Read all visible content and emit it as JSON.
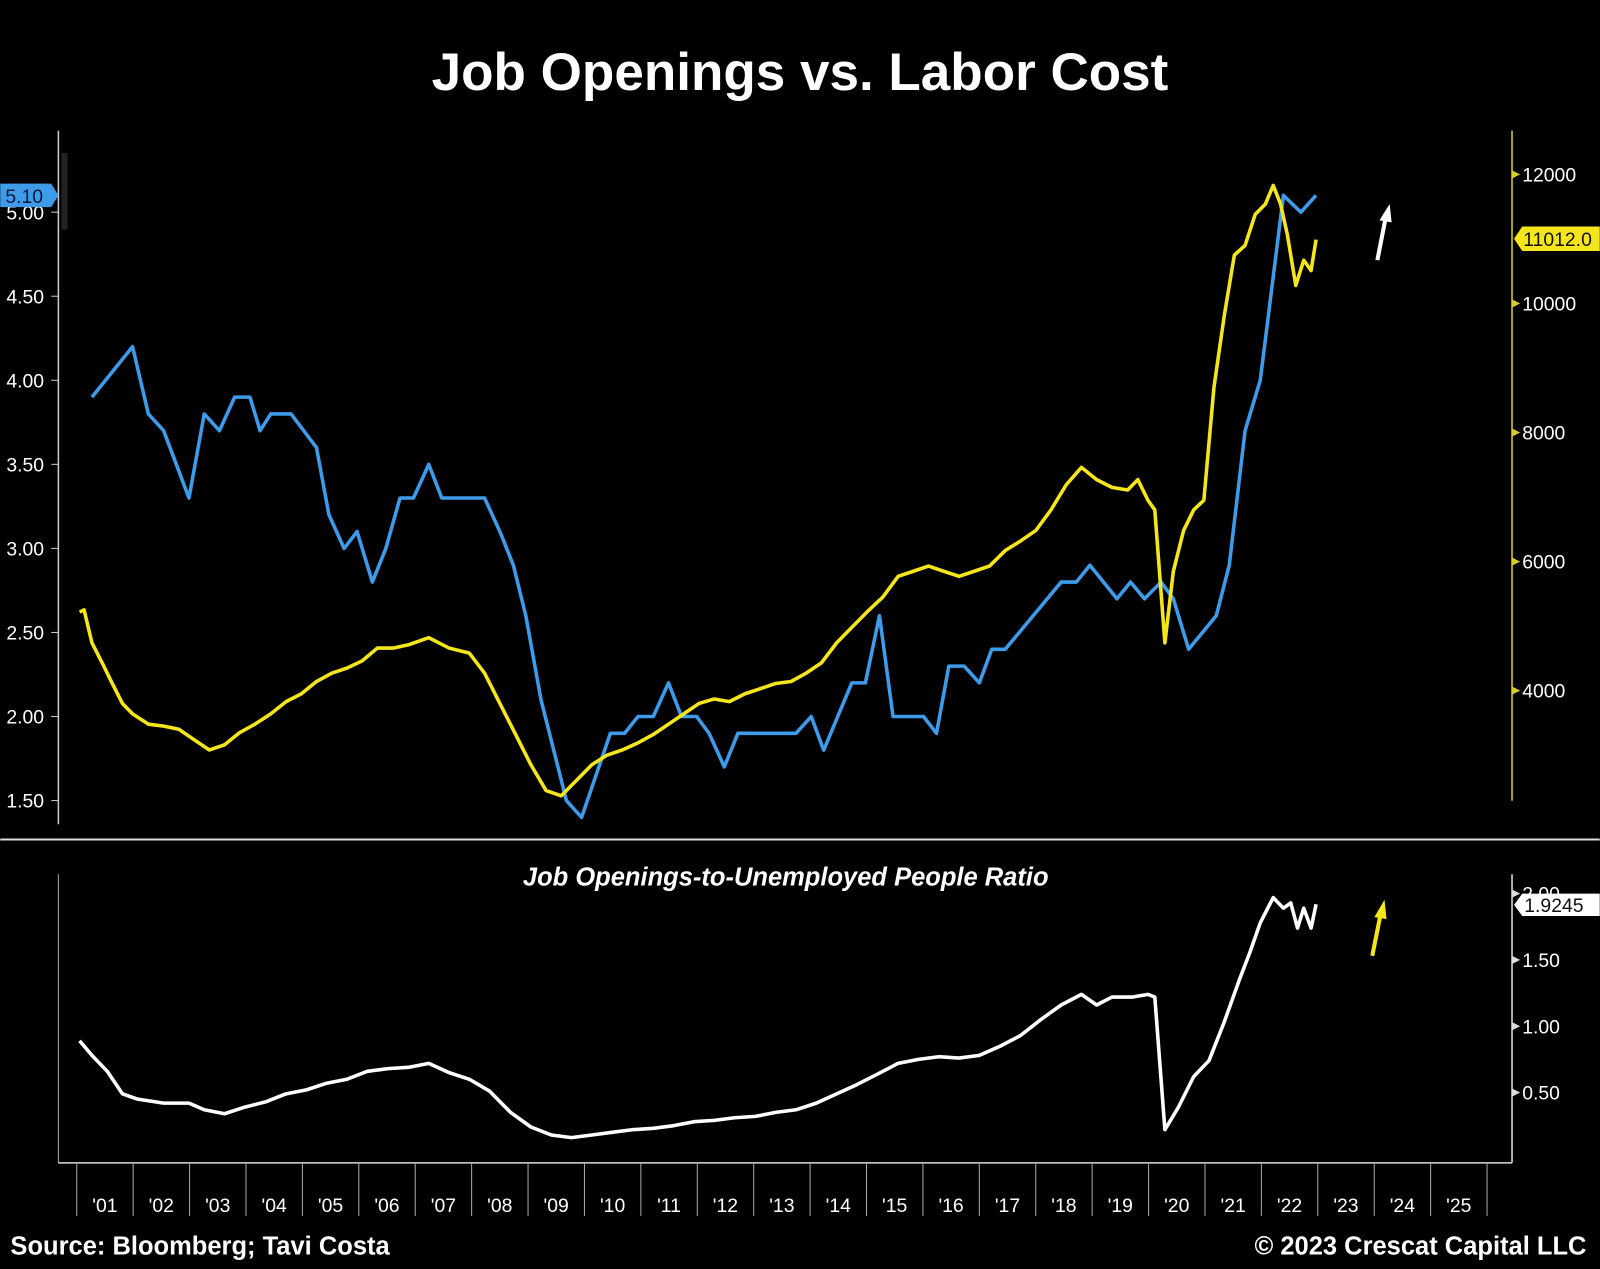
{
  "chart_data": [
    {
      "type": "line",
      "title": "Job Openings vs. Labor Cost",
      "x_tick_labels": [
        "'01",
        "'02",
        "'03",
        "'04",
        "'05",
        "'06",
        "'07",
        "'08",
        "'09",
        "'10",
        "'11",
        "'12",
        "'13",
        "'14",
        "'15",
        "'16",
        "'17",
        "'18",
        "'19",
        "'20",
        "'21",
        "'22",
        "'23",
        "'24",
        "'25"
      ],
      "xlim": [
        2001,
        2026
      ],
      "left_axis": {
        "ylim": [
          1.4,
          5.3
        ],
        "ticks": [
          "1.50",
          "2.00",
          "2.50",
          "3.00",
          "3.50",
          "4.00",
          "4.50",
          "5.00"
        ]
      },
      "right_axis": {
        "ylim": [
          2200,
          12800
        ],
        "ticks": [
          "4000",
          "6000",
          "8000",
          "10000",
          "12000"
        ]
      },
      "series": [
        {
          "name": "Job Openings",
          "axis": "left",
          "color": "#3d9be9",
          "last_value_label": "5.10",
          "x": [
            2001.27,
            2001.99,
            2002.27,
            2002.54,
            2002.99,
            2003.26,
            2003.53,
            2003.8,
            2004.07,
            2004.25,
            2004.44,
            2004.8,
            2005.25,
            2005.47,
            2005.74,
            2005.97,
            2006.24,
            2006.48,
            2006.73,
            2006.97,
            2007.24,
            2007.47,
            2008.23,
            2008.5,
            2008.74,
            2008.96,
            2009.23,
            2009.68,
            2009.95,
            2010.46,
            2010.71,
            2010.95,
            2011.22,
            2011.49,
            2011.72,
            2011.99,
            2012.21,
            2012.48,
            2012.72,
            2013.75,
            2014.02,
            2014.24,
            2014.74,
            2014.98,
            2015.23,
            2015.47,
            2016.01,
            2016.24,
            2016.46,
            2016.73,
            2017.0,
            2017.22,
            2017.46,
            2018.45,
            2018.72,
            2018.96,
            2019.44,
            2019.68,
            2019.93,
            2020.22,
            2020.44,
            2020.71,
            2021.2,
            2021.43,
            2021.71,
            2021.98,
            2022.39,
            2022.7,
            2022.97
          ],
          "y": [
            3.9,
            4.2,
            3.8,
            3.7,
            3.3,
            3.8,
            3.7,
            3.9,
            3.9,
            3.7,
            3.8,
            3.8,
            3.6,
            3.2,
            3.0,
            3.1,
            2.8,
            3.0,
            3.3,
            3.3,
            3.5,
            3.3,
            3.3,
            3.1,
            2.9,
            2.6,
            2.1,
            1.5,
            1.4,
            1.9,
            1.9,
            2.0,
            2.0,
            2.2,
            2.0,
            2.0,
            1.9,
            1.7,
            1.9,
            1.9,
            2.0,
            1.8,
            2.2,
            2.2,
            2.6,
            2.0,
            2.0,
            1.9,
            2.3,
            2.3,
            2.2,
            2.4,
            2.4,
            2.8,
            2.8,
            2.9,
            2.7,
            2.8,
            2.7,
            2.8,
            2.7,
            2.4,
            2.6,
            2.9,
            3.7,
            4.0,
            5.1,
            5.0,
            5.1
          ]
        },
        {
          "name": "Labor Cost",
          "axis": "right",
          "color": "#f5e61c",
          "last_value_label": "11012.0",
          "x": [
            2001.05,
            2001.13,
            2001.27,
            2001.45,
            2001.63,
            2001.81,
            2001.99,
            2002.27,
            2002.54,
            2002.81,
            2003.08,
            2003.35,
            2003.62,
            2003.89,
            2004.16,
            2004.44,
            2004.71,
            2004.98,
            2005.25,
            2005.52,
            2005.79,
            2006.06,
            2006.33,
            2006.61,
            2006.88,
            2007.24,
            2007.6,
            2007.96,
            2008.23,
            2008.5,
            2008.78,
            2009.05,
            2009.32,
            2009.59,
            2009.86,
            2010.13,
            2010.4,
            2010.67,
            2010.95,
            2011.22,
            2011.49,
            2011.76,
            2012.03,
            2012.3,
            2012.57,
            2012.84,
            2013.12,
            2013.39,
            2013.66,
            2013.93,
            2014.2,
            2014.47,
            2014.74,
            2015.01,
            2015.29,
            2015.56,
            2015.83,
            2016.1,
            2016.37,
            2016.64,
            2016.91,
            2017.18,
            2017.46,
            2017.73,
            2018.0,
            2018.27,
            2018.54,
            2018.81,
            2019.08,
            2019.35,
            2019.63,
            2019.81,
            2019.99,
            2020.11,
            2020.29,
            2020.44,
            2020.62,
            2020.8,
            2020.98,
            2021.16,
            2021.34,
            2021.52,
            2021.71,
            2021.89,
            2022.07,
            2022.21,
            2022.34,
            2022.46,
            2022.61,
            2022.75,
            2022.88,
            2022.97
          ],
          "y": [
            5217,
            5250,
            4740,
            4430,
            4110,
            3800,
            3640,
            3480,
            3450,
            3400,
            3240,
            3080,
            3160,
            3350,
            3480,
            3640,
            3830,
            3950,
            4140,
            4270,
            4350,
            4460,
            4660,
            4660,
            4710,
            4820,
            4660,
            4580,
            4270,
            3800,
            3320,
            2850,
            2450,
            2370,
            2610,
            2850,
            3000,
            3080,
            3190,
            3320,
            3480,
            3640,
            3800,
            3870,
            3830,
            3950,
            4030,
            4110,
            4140,
            4270,
            4430,
            4740,
            4980,
            5220,
            5450,
            5770,
            5850,
            5930,
            5850,
            5770,
            5850,
            5930,
            6170,
            6320,
            6480,
            6800,
            7190,
            7460,
            7270,
            7150,
            7110,
            7270,
            6950,
            6800,
            4740,
            5850,
            6480,
            6800,
            6950,
            8700,
            9800,
            10750,
            10900,
            11380,
            11540,
            11830,
            11540,
            11070,
            10280,
            10670,
            10510,
            10990
          ]
        }
      ]
    },
    {
      "type": "line",
      "title": "Job Openings-to-Unemployed People Ratio",
      "right_axis": {
        "ylim": [
          0,
          2.1
        ],
        "ticks": [
          "0.50",
          "1.00",
          "1.50",
          "2.00"
        ]
      },
      "series": [
        {
          "name": "Job Openings-to-Unemployed People Ratio",
          "color": "#ffffff",
          "last_value_label": "1.9245",
          "x": [
            2001.05,
            2001.27,
            2001.54,
            2001.81,
            2002.08,
            2002.54,
            2002.99,
            2003.26,
            2003.62,
            2003.98,
            2004.35,
            2004.71,
            2005.07,
            2005.43,
            2005.79,
            2006.15,
            2006.52,
            2006.88,
            2007.24,
            2007.6,
            2007.96,
            2008.32,
            2008.69,
            2009.05,
            2009.41,
            2009.77,
            2010.13,
            2010.49,
            2010.86,
            2011.22,
            2011.58,
            2011.94,
            2012.3,
            2012.66,
            2013.03,
            2013.39,
            2013.75,
            2014.11,
            2014.47,
            2014.83,
            2015.2,
            2015.56,
            2015.92,
            2016.28,
            2016.64,
            2017.0,
            2017.37,
            2017.73,
            2018.09,
            2018.45,
            2018.81,
            2019.08,
            2019.35,
            2019.72,
            2019.99,
            2020.11,
            2020.29,
            2020.53,
            2020.8,
            2021.07,
            2021.34,
            2021.61,
            2021.79,
            2021.98,
            2022.21,
            2022.39,
            2022.52,
            2022.64,
            2022.75,
            2022.88,
            2022.97
          ],
          "y": [
            0.89,
            0.78,
            0.66,
            0.49,
            0.45,
            0.42,
            0.42,
            0.37,
            0.34,
            0.39,
            0.43,
            0.49,
            0.52,
            0.57,
            0.6,
            0.66,
            0.68,
            0.69,
            0.72,
            0.65,
            0.6,
            0.51,
            0.35,
            0.24,
            0.18,
            0.16,
            0.18,
            0.2,
            0.22,
            0.23,
            0.25,
            0.28,
            0.29,
            0.31,
            0.32,
            0.35,
            0.37,
            0.42,
            0.49,
            0.56,
            0.64,
            0.72,
            0.75,
            0.77,
            0.76,
            0.78,
            0.85,
            0.93,
            1.05,
            1.16,
            1.24,
            1.16,
            1.22,
            1.22,
            1.24,
            1.22,
            0.22,
            0.39,
            0.62,
            0.74,
            1.03,
            1.35,
            1.55,
            1.78,
            1.97,
            1.89,
            1.93,
            1.74,
            1.89,
            1.74,
            1.92
          ]
        }
      ]
    }
  ],
  "footer": {
    "source": "Source: Bloomberg; Tavi Costa",
    "copyright": "© 2023 Crescat Capital LLC"
  }
}
